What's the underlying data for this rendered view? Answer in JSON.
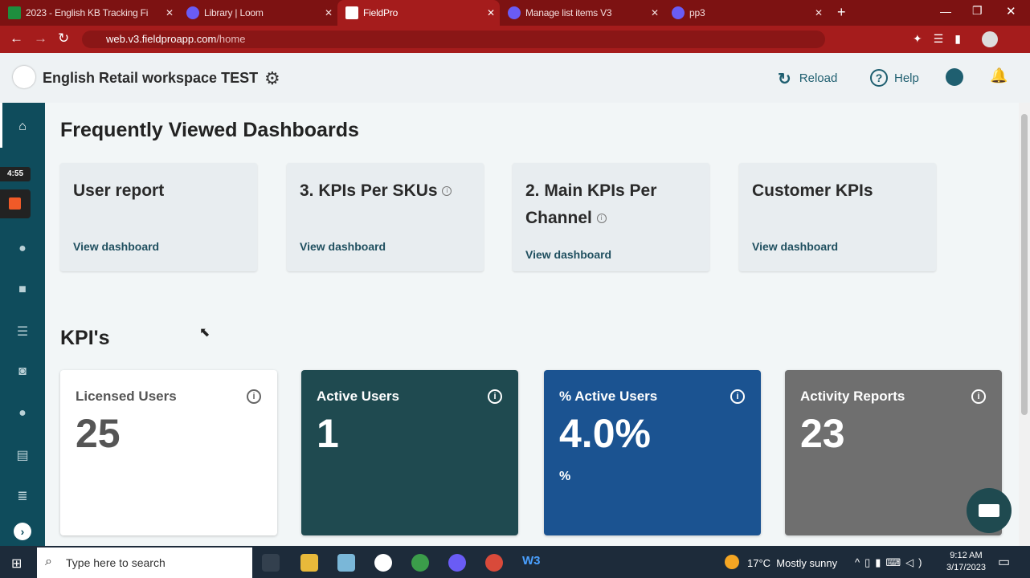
{
  "browser": {
    "tabs": [
      {
        "label": "2023 - English KB Tracking Fi",
        "color": "#1e8e3e"
      },
      {
        "label": "Library | Loom",
        "color": "#6a5cf5"
      },
      {
        "label": "FieldPro",
        "color": "#1f5f70"
      },
      {
        "label": "Manage list items V3",
        "color": "#6a5cf5"
      },
      {
        "label": "pp3",
        "color": "#6a5cf5"
      }
    ],
    "url_host": "web.v3.fieldproapp.com",
    "url_path": "/home"
  },
  "header": {
    "workspace": "English Retail workspace TEST",
    "reload": "Reload",
    "help": "Help"
  },
  "recording": {
    "timer": "4:55"
  },
  "dashboards": {
    "title": "Frequently Viewed Dashboards",
    "link": "View dashboard",
    "items": [
      {
        "title": "User report",
        "info": false
      },
      {
        "title": "3. KPIs Per SKUs",
        "info": true
      },
      {
        "title": "2. Main KPIs Per Channel",
        "info": true
      },
      {
        "title": "Customer KPIs",
        "info": false
      }
    ]
  },
  "kpis": {
    "title": "KPI's",
    "items": [
      {
        "title": "Licensed Users",
        "value": "25",
        "sub": "",
        "bg": "#ffffff"
      },
      {
        "title": "Active Users",
        "value": "1",
        "sub": "",
        "bg": "#1f4a50"
      },
      {
        "title": "% Active Users",
        "value": "4.0%",
        "sub": "%",
        "bg": "#1b5391"
      },
      {
        "title": "Activity Reports",
        "value": "23",
        "sub": "",
        "bg": "#6f6f6f"
      }
    ]
  },
  "taskbar": {
    "search_placeholder": "Type here to search",
    "weather": "17°C  Mostly sunny",
    "time": "9:12 AM",
    "date": "3/17/2023"
  }
}
